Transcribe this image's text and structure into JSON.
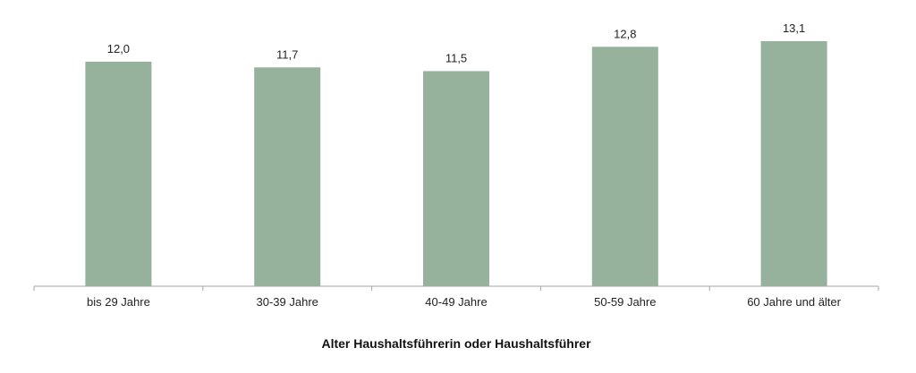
{
  "chart_data": {
    "type": "bar",
    "categories": [
      "bis 29 Jahre",
      "30-39 Jahre",
      "40-49 Jahre",
      "50-59 Jahre",
      "60 Jahre und älter"
    ],
    "values": [
      12.0,
      11.7,
      11.5,
      12.8,
      13.1
    ],
    "value_labels": [
      "12,0",
      "11,7",
      "11,5",
      "12,8",
      "13,1"
    ],
    "xlabel": "Alter Haushaltsführerin oder Haushaltsführer",
    "ylabel": "",
    "ylim": [
      0,
      13.1
    ],
    "grid": false,
    "colors": {
      "bar": "#96B29D",
      "axis": "#A6A6A6"
    }
  }
}
